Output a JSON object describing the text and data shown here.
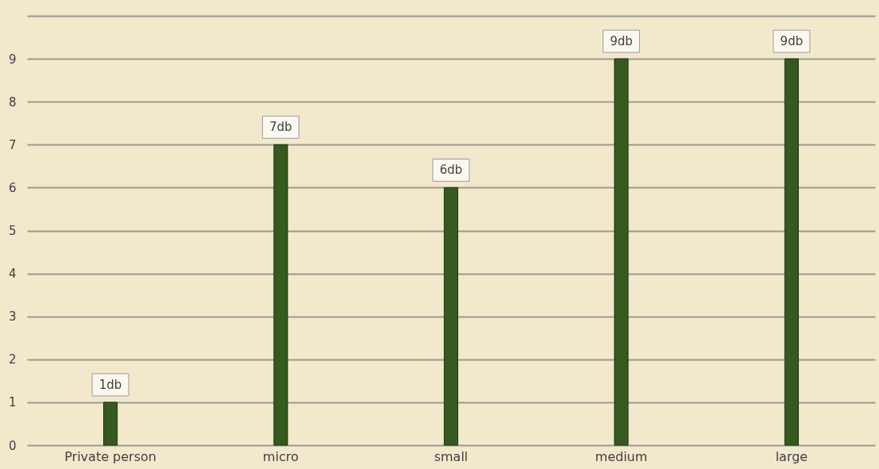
{
  "chart_data": {
    "type": "bar",
    "categories": [
      "Private person",
      "micro",
      "small",
      "medium",
      "large"
    ],
    "values": [
      1,
      7,
      6,
      9,
      9
    ],
    "value_labels": [
      "1db",
      "7db",
      "6db",
      "9db",
      "9db"
    ],
    "color": "#35591f",
    "ylim": [
      0,
      10
    ],
    "yticks": [
      0,
      1,
      2,
      3,
      4,
      5,
      6,
      7,
      8,
      9,
      {
        "value": 10,
        "label": null
      }
    ],
    "grid": "y"
  }
}
